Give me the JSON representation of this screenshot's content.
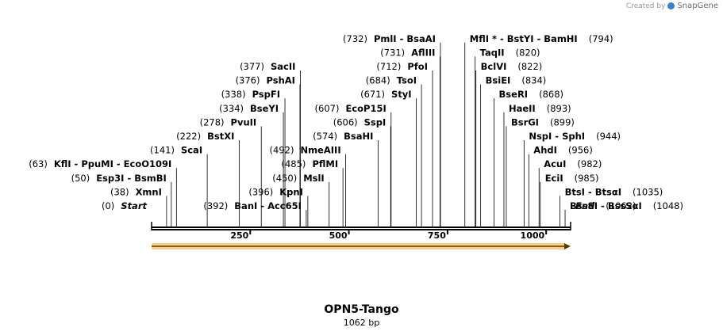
{
  "credit": {
    "prefix": "Created by",
    "brand": "SnapGene"
  },
  "title": "OPN5-Tango",
  "length_label": "1062 bp",
  "total_bp": 1062,
  "ticks": [
    250,
    500,
    750,
    1000
  ],
  "feature": {
    "start": 1,
    "end": 1062,
    "color": "#f5a623"
  },
  "ends": [
    {
      "label": "Start",
      "pos_label": "(0)",
      "site": 0,
      "row": 0,
      "side": "left"
    },
    {
      "label": "End",
      "pos_label": "(1062)",
      "site": 1062,
      "row": 0,
      "side": "right"
    }
  ],
  "sites": [
    {
      "label": "XmnI",
      "pos_label": "(38)",
      "site": 38,
      "row": 1,
      "side": "left"
    },
    {
      "label": "Esp3I  -  BsmBI",
      "pos_label": "(50)",
      "site": 50,
      "row": 2,
      "side": "left"
    },
    {
      "label": "KflI  -  PpuMI  -  EcoO109I",
      "pos_label": "(63)",
      "site": 63,
      "row": 3,
      "side": "left"
    },
    {
      "label": "ScaI",
      "pos_label": "(141)",
      "site": 141,
      "row": 4,
      "side": "left"
    },
    {
      "label": "BstXI",
      "pos_label": "(222)",
      "site": 222,
      "row": 5,
      "side": "left"
    },
    {
      "label": "PvuII",
      "pos_label": "(278)",
      "site": 278,
      "row": 6,
      "side": "left"
    },
    {
      "label": "BseYI",
      "pos_label": "(334)",
      "site": 334,
      "row": 7,
      "side": "left"
    },
    {
      "label": "PspFI",
      "pos_label": "(338)",
      "site": 338,
      "row": 8,
      "side": "left"
    },
    {
      "label": "PshAI",
      "pos_label": "(376)",
      "site": 376,
      "row": 9,
      "side": "left"
    },
    {
      "label": "SacII",
      "pos_label": "(377)",
      "site": 377,
      "row": 10,
      "side": "left"
    },
    {
      "label": "BanI  -  Acc65I",
      "pos_label": "(392)",
      "site": 392,
      "row": 0,
      "side": "left"
    },
    {
      "label": "KpnI",
      "pos_label": "(396)",
      "site": 396,
      "row": 1,
      "side": "left"
    },
    {
      "label": "MslI",
      "pos_label": "(450)",
      "site": 450,
      "row": 2,
      "side": "left"
    },
    {
      "label": "PflMI",
      "pos_label": "(485)",
      "site": 485,
      "row": 3,
      "side": "left"
    },
    {
      "label": "NmeAIII",
      "pos_label": "(492)",
      "site": 492,
      "row": 4,
      "side": "left"
    },
    {
      "label": "BsaHI",
      "pos_label": "(574)",
      "site": 574,
      "row": 5,
      "side": "left"
    },
    {
      "label": "SspI",
      "pos_label": "(606)",
      "site": 606,
      "row": 6,
      "side": "left"
    },
    {
      "label": "EcoP15I",
      "pos_label": "(607)",
      "site": 607,
      "row": 7,
      "side": "left"
    },
    {
      "label": "StyI",
      "pos_label": "(671)",
      "site": 671,
      "row": 8,
      "side": "left"
    },
    {
      "label": "TsoI",
      "pos_label": "(684)",
      "site": 684,
      "row": 9,
      "side": "left"
    },
    {
      "label": "PfoI",
      "pos_label": "(712)",
      "site": 712,
      "row": 10,
      "side": "left"
    },
    {
      "label": "AflIII",
      "pos_label": "(731)",
      "site": 731,
      "row": 11,
      "side": "left"
    },
    {
      "label": "PmlI  -  BsaAI",
      "pos_label": "(732)",
      "site": 732,
      "row": 12,
      "side": "left"
    },
    {
      "label": "MflI *  -  BstYI  -  BamHI",
      "pos_label": "(794)",
      "site": 794,
      "row": 12,
      "side": "right"
    },
    {
      "label": "TaqII",
      "pos_label": "(820)",
      "site": 820,
      "row": 11,
      "side": "right"
    },
    {
      "label": "BclVI",
      "pos_label": "(822)",
      "site": 822,
      "row": 10,
      "side": "right"
    },
    {
      "label": "BsiEI",
      "pos_label": "(834)",
      "site": 834,
      "row": 9,
      "side": "right"
    },
    {
      "label": "BseRI",
      "pos_label": "(868)",
      "site": 868,
      "row": 8,
      "side": "right"
    },
    {
      "label": "HaeII",
      "pos_label": "(893)",
      "site": 893,
      "row": 7,
      "side": "right"
    },
    {
      "label": "BsrGI",
      "pos_label": "(899)",
      "site": 899,
      "row": 6,
      "side": "right"
    },
    {
      "label": "NspI  -  SphI",
      "pos_label": "(944)",
      "site": 944,
      "row": 5,
      "side": "right"
    },
    {
      "label": "AhdI",
      "pos_label": "(956)",
      "site": 956,
      "row": 4,
      "side": "right"
    },
    {
      "label": "AcuI",
      "pos_label": "(982)",
      "site": 982,
      "row": 3,
      "side": "right"
    },
    {
      "label": "EciI",
      "pos_label": "(985)",
      "site": 985,
      "row": 2,
      "side": "right"
    },
    {
      "label": "BtsI  -  BtsαI",
      "pos_label": "(1035)",
      "site": 1035,
      "row": 1,
      "side": "right"
    },
    {
      "label": "BssSI  -  BssSαI",
      "pos_label": "(1048)",
      "site": 1048,
      "row": 0,
      "side": "right"
    }
  ]
}
